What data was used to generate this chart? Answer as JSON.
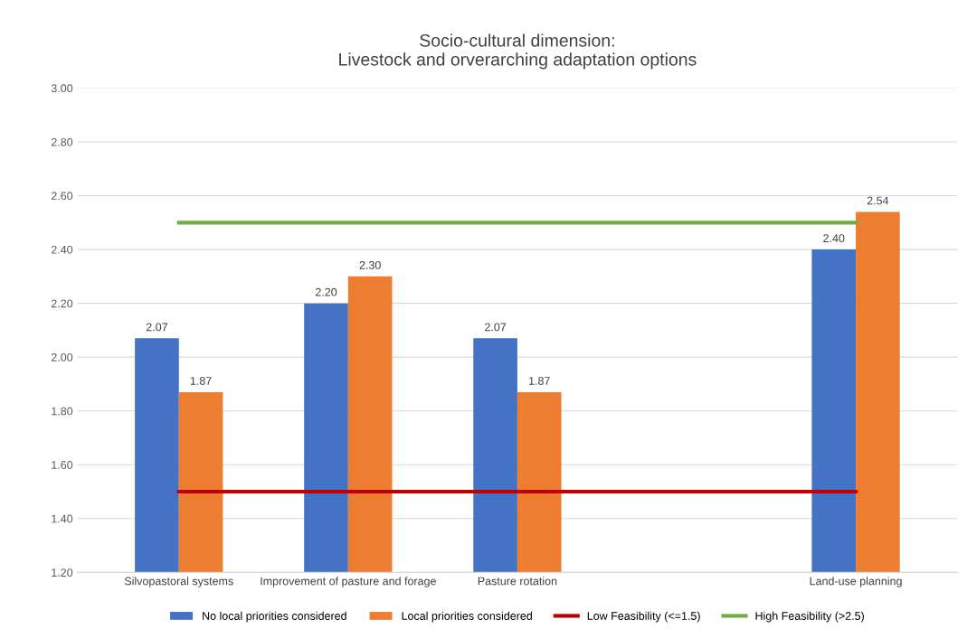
{
  "chart_data": {
    "type": "bar",
    "title": "Socio-cultural dimension:\nLivestock and orverarching adaptation options",
    "categories": [
      "Silvopastoral systems",
      "Improvement of pasture and forage",
      "Pasture rotation",
      null,
      "Land-use planning"
    ],
    "series": [
      {
        "name": "No local priorities considered",
        "color": "#4472c4",
        "values": [
          2.07,
          2.2,
          2.07,
          null,
          2.4
        ],
        "value_labels": [
          "2.07",
          "2.20",
          "2.07",
          null,
          "2.40"
        ]
      },
      {
        "name": "Local priorities considered",
        "color": "#ed7d31",
        "values": [
          1.87,
          2.3,
          1.87,
          null,
          2.54
        ],
        "value_labels": [
          "1.87",
          "2.30",
          "1.87",
          null,
          "2.54"
        ]
      },
      {
        "name": "Low Feasibility (<=1.5)",
        "type": "line",
        "color": "#c00000",
        "values": [
          1.5,
          1.5,
          1.5,
          1.5,
          1.5
        ]
      },
      {
        "name": "High Feasibility (>2.5)",
        "type": "line",
        "color": "#70ad47",
        "values": [
          2.5,
          2.5,
          2.5,
          2.5,
          2.5
        ]
      }
    ],
    "ylim": [
      1.2,
      3.0
    ],
    "yticks": [
      {
        "value": 1.2,
        "label": "1.20"
      },
      {
        "value": 1.4,
        "label": "1.40"
      },
      {
        "value": 1.6,
        "label": "1.60"
      },
      {
        "value": 1.8,
        "label": "1.80"
      },
      {
        "value": 2.0,
        "label": "2.00"
      },
      {
        "value": 2.2,
        "label": "2.20"
      },
      {
        "value": 2.4,
        "label": "2.40"
      },
      {
        "value": 2.6,
        "label": "2.60"
      },
      {
        "value": 2.8,
        "label": "2.80"
      },
      {
        "value": 3.0,
        "label": "3.00"
      }
    ],
    "grid": "y",
    "legend": "bottom"
  }
}
